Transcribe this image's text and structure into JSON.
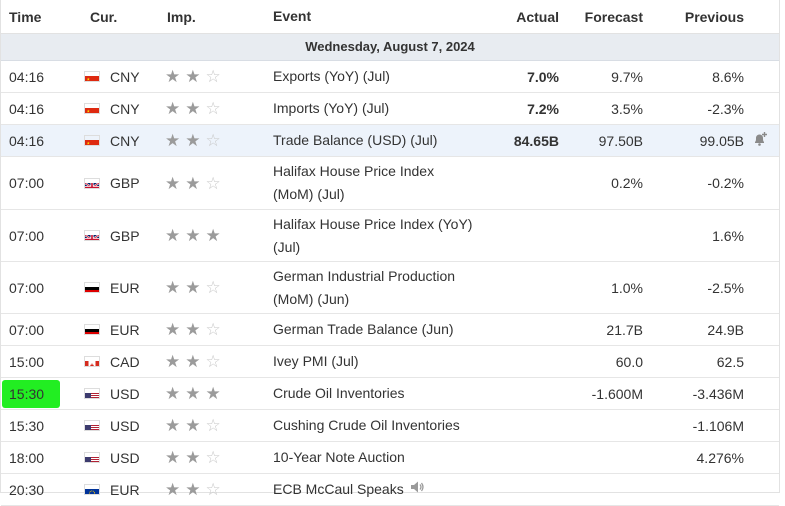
{
  "header": {
    "time": "Time",
    "currency": "Cur.",
    "importance": "Imp.",
    "event": "Event",
    "actual": "Actual",
    "forecast": "Forecast",
    "previous": "Previous"
  },
  "date_label": "Wednesday, August 7, 2024",
  "rows": [
    {
      "time": "04:16",
      "currency": "CNY",
      "flag": "china-flag-icon",
      "stars": 2,
      "event": "Exports (YoY) (Jul)",
      "actual": "7.0%",
      "forecast": "9.7%",
      "previous": "8.6%"
    },
    {
      "time": "04:16",
      "currency": "CNY",
      "flag": "china-flag-icon",
      "stars": 2,
      "event": "Imports (YoY) (Jul)",
      "actual": "7.2%",
      "forecast": "3.5%",
      "previous": "-2.3%"
    },
    {
      "time": "04:16",
      "currency": "CNY",
      "flag": "china-flag-icon",
      "stars": 2,
      "event": "Trade Balance (USD) (Jul)",
      "actual": "84.65B",
      "forecast": "97.50B",
      "previous": "99.05B",
      "highlighted": true,
      "alert_icon": "bell-plus-icon"
    },
    {
      "time": "07:00",
      "currency": "GBP",
      "flag": "uk-flag-icon",
      "stars": 2,
      "event": "Halifax House Price Index (MoM) (Jul)",
      "actual": "",
      "forecast": "0.2%",
      "previous": "-0.2%"
    },
    {
      "time": "07:00",
      "currency": "GBP",
      "flag": "uk-flag-icon",
      "stars": 3,
      "event": "Halifax House Price Index (YoY) (Jul)",
      "actual": "",
      "forecast": "",
      "previous": "1.6%"
    },
    {
      "time": "07:00",
      "currency": "EUR",
      "flag": "germany-flag-icon",
      "stars": 2,
      "event": "German Industrial Production (MoM) (Jun)",
      "actual": "",
      "forecast": "1.0%",
      "previous": "-2.5%"
    },
    {
      "time": "07:00",
      "currency": "EUR",
      "flag": "germany-flag-icon",
      "stars": 2,
      "event": "German Trade Balance (Jun)",
      "actual": "",
      "forecast": "21.7B",
      "previous": "24.9B"
    },
    {
      "time": "15:00",
      "currency": "CAD",
      "flag": "canada-flag-icon",
      "stars": 2,
      "event": "Ivey PMI (Jul)",
      "actual": "",
      "forecast": "60.0",
      "previous": "62.5"
    },
    {
      "time": "15:30",
      "currency": "USD",
      "flag": "us-flag-icon",
      "stars": 3,
      "event": "Crude Oil Inventories",
      "actual": "",
      "forecast": "-1.600M",
      "previous": "-3.436M",
      "time_marked": true
    },
    {
      "time": "15:30",
      "currency": "USD",
      "flag": "us-flag-icon",
      "stars": 2,
      "event": "Cushing Crude Oil Inventories",
      "actual": "",
      "forecast": "",
      "previous": "-1.106M"
    },
    {
      "time": "18:00",
      "currency": "USD",
      "flag": "us-flag-icon",
      "stars": 2,
      "event": "10-Year Note Auction",
      "actual": "",
      "forecast": "",
      "previous": "4.276%"
    },
    {
      "time": "20:30",
      "currency": "EUR",
      "flag": "eu-flag-icon",
      "stars": 2,
      "event": "ECB McCaul Speaks",
      "actual": "",
      "forecast": "",
      "previous": "",
      "speaker_icon": "speaker-icon"
    }
  ]
}
